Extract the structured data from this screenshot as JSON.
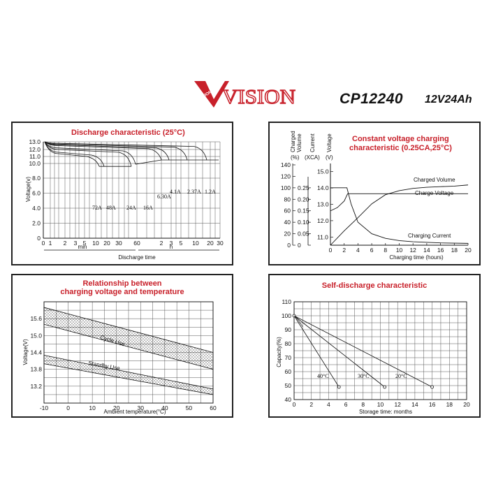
{
  "header": {
    "brand": "VISION",
    "brand_small": "VISION",
    "model": "CP12240",
    "spec": "12V24Ah"
  },
  "colors": {
    "title": "#c8202a",
    "logo_red": "#c8202a",
    "line": "#111111"
  },
  "chart_data": [
    {
      "id": "discharge",
      "type": "line",
      "title": "Discharge characteristic (25°C)",
      "xlabel": "Discharge time",
      "ylabel": "Voltage(v)",
      "x_ticks_min": [
        "0",
        "1",
        "2",
        "3",
        "5",
        "10",
        "20",
        "30",
        "60"
      ],
      "x_ticks_h": [
        "2",
        "3",
        "5",
        "10",
        "20",
        "30"
      ],
      "x_unit_min": "min",
      "x_unit_h": "h",
      "y_ticks": [
        "0",
        "2.0",
        "4.0",
        "6.0",
        "8.0",
        "10.0",
        "11.0",
        "12.0",
        "13.0"
      ],
      "series": [
        {
          "name": "72A",
          "end_min": 10,
          "end_v": 9.6
        },
        {
          "name": "48A",
          "end_min": 15,
          "end_v": 9.6
        },
        {
          "name": "24A",
          "end_min": 40,
          "end_v": 9.6
        },
        {
          "name": "16A",
          "end_min": 60,
          "end_v": 9.9
        },
        {
          "name": "6.30A",
          "end_min": 180,
          "end_v": 10.5
        },
        {
          "name": "4.1A",
          "end_min": 300,
          "end_v": 10.5
        },
        {
          "name": "2.37A",
          "end_min": 600,
          "end_v": 10.5
        },
        {
          "name": "1.2A",
          "end_min": 1200,
          "end_v": 10.5
        }
      ]
    },
    {
      "id": "charging",
      "type": "line",
      "title": "Constant voltage charging characteristic (0.25CA,25°C)",
      "xlabel": "Charging time (hours)",
      "axis_headers": [
        "Charged Volume (%)",
        "Current (XCA)",
        "Voltage (V)"
      ],
      "y1_ticks": [
        "0",
        "20",
        "40",
        "60",
        "80",
        "100",
        "120",
        "140"
      ],
      "y2_ticks": [
        "0",
        "0.05",
        "0.10",
        "0.15",
        "0.20",
        "0.25"
      ],
      "y3_ticks": [
        "11.0",
        "12.0",
        "13.0",
        "14.0",
        "15.0"
      ],
      "x_ticks": [
        "0",
        "2",
        "4",
        "6",
        "8",
        "10",
        "12",
        "14",
        "16",
        "18",
        "20"
      ],
      "series": [
        {
          "name": "Charged Volume",
          "x": [
            0,
            2,
            4,
            6,
            8,
            10,
            12,
            14,
            16,
            18,
            20
          ],
          "y": [
            0,
            25,
            48,
            72,
            88,
            95,
            99,
            101,
            102,
            103,
            105
          ]
        },
        {
          "name": "Charge Voltage",
          "x": [
            0,
            1,
            2,
            2.5,
            3,
            20
          ],
          "y": [
            12.6,
            12.8,
            13.2,
            13.65,
            13.65,
            13.65
          ]
        },
        {
          "name": "Charging Current",
          "x": [
            0,
            2.4,
            3,
            4,
            6,
            8,
            10,
            12,
            16,
            20
          ],
          "y": [
            0.25,
            0.25,
            0.18,
            0.1,
            0.05,
            0.03,
            0.02,
            0.015,
            0.01,
            0.008
          ]
        }
      ]
    },
    {
      "id": "temperature",
      "type": "area",
      "title": "Relationship between charging voltage and temperature",
      "xlabel": "Ambient temperature(°C)",
      "ylabel": "Voltage(V)",
      "x_ticks": [
        "-10",
        "0",
        "10",
        "20",
        "30",
        "40",
        "50",
        "60"
      ],
      "y_ticks": [
        "13.2",
        "13.8",
        "14.4",
        "15.0",
        "15.6"
      ],
      "series": [
        {
          "name": "Cycle Use",
          "x": [
            -10,
            60
          ],
          "upper": [
            16.0,
            14.4
          ],
          "lower": [
            15.4,
            13.8
          ]
        },
        {
          "name": "Standby Use",
          "x": [
            -10,
            60
          ],
          "upper": [
            14.3,
            13.1
          ],
          "lower": [
            14.0,
            12.9
          ]
        }
      ]
    },
    {
      "id": "selfdischarge",
      "type": "line",
      "title": "Self-discharge characteristic",
      "xlabel": "Storage time: months",
      "ylabel": "Capacity(%)",
      "x_ticks": [
        "0",
        "2",
        "4",
        "6",
        "8",
        "10",
        "12",
        "14",
        "16",
        "18",
        "20"
      ],
      "y_ticks": [
        "40",
        "50",
        "60",
        "70",
        "80",
        "90",
        "100",
        "110"
      ],
      "series": [
        {
          "name": "40°C",
          "x": [
            0,
            5.2
          ],
          "y": [
            100,
            49
          ]
        },
        {
          "name": "30°C",
          "x": [
            0,
            10.5
          ],
          "y": [
            100,
            49
          ]
        },
        {
          "name": "20°C",
          "x": [
            0,
            16
          ],
          "y": [
            100,
            49
          ]
        }
      ]
    }
  ]
}
